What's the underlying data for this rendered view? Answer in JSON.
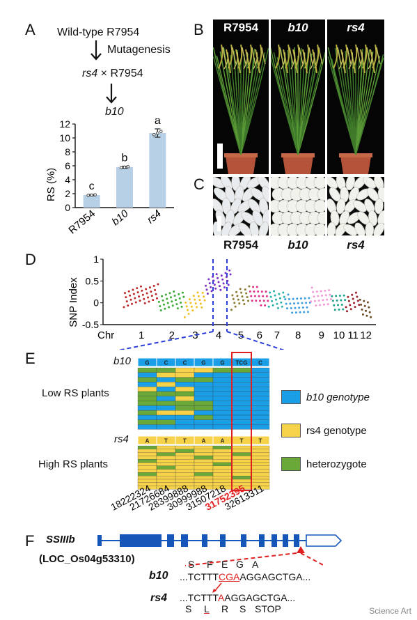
{
  "panels": {
    "A": "A",
    "B": "B",
    "C": "C",
    "D": "D",
    "E": "E",
    "F": "F"
  },
  "panelA": {
    "line1": "Wild-type R7954",
    "step1": "Mutagenesis",
    "cross_left": "rs4",
    "cross_sym": " × ",
    "cross_right": "R7954",
    "result": "b10"
  },
  "chart_data": [
    {
      "type": "bar",
      "categories": [
        "R7954",
        "b10",
        "rs4"
      ],
      "values": [
        1.8,
        5.8,
        10.7
      ],
      "errors": [
        0.1,
        0.15,
        0.6
      ],
      "letters": [
        "c",
        "b",
        "a"
      ],
      "ylabel": "RS (%)",
      "ylim": [
        0,
        12
      ],
      "yticks": [
        0,
        2,
        4,
        6,
        8,
        10,
        12
      ],
      "color": "#b7d0e6"
    },
    {
      "type": "scatter",
      "ylabel": "SNP Index",
      "ylim": [
        -0.5,
        1
      ],
      "yticks": [
        -0.5,
        0,
        0.5,
        1
      ],
      "yticklabels": [
        "-0.5",
        "0",
        "0.5",
        "1"
      ],
      "xlabel_prefix": "Chr",
      "chromosomes": [
        "1",
        "2",
        "3",
        "4",
        "5",
        "6",
        "7",
        "8",
        "9",
        "10",
        "11",
        "12"
      ],
      "colors": [
        "#c0282a",
        "#3aaa35",
        "#f0c020",
        "#7a2fc8",
        "#8a7a30",
        "#e0308a",
        "#27b0a8",
        "#3a9ee0",
        "#f29ad8",
        "#1aa38a",
        "#a01e2a",
        "#6a4a20"
      ]
    }
  ],
  "panelB": {
    "labels": [
      "R7954",
      "b10",
      "rs4"
    ]
  },
  "panelC": {
    "labels": [
      "R7954",
      "b10",
      "rs4"
    ]
  },
  "panelE": {
    "b10_label": "b10",
    "rs4_label": "rs4",
    "b10_bases": [
      "G",
      "C",
      "C",
      "G",
      "G",
      "TCG",
      "C"
    ],
    "rs4_bases": [
      "A",
      "T",
      "T",
      "A",
      "A",
      "T",
      "T"
    ],
    "low_label": "Low RS plants",
    "high_label": "High RS plants",
    "legend": [
      {
        "label": "b10 genotype",
        "color": "#1a9ee6"
      },
      {
        "label": "rs4 genotype",
        "color": "#f5d24a"
      },
      {
        "label": "heterozygote",
        "color": "#6aa83a"
      }
    ],
    "positions": [
      "18222324",
      "21726684",
      "28399888",
      "30999988",
      "31507218",
      "31752395",
      "32613311"
    ],
    "highlight_color": "#e02020"
  },
  "panelF": {
    "gene": "SSIIIb",
    "locus": "(LOC_Os04g53310)",
    "b10_label": "b10",
    "rs4_label": "rs4",
    "b10_pre": "...TCTTT",
    "b10_mut": "CGA",
    "b10_post": "AGGAGCTGA...",
    "rs4_pre": "...TCTTT",
    "rs4_mut": "A",
    "rs4_post": "AGGAGCTGA...",
    "aa_top": [
      "S",
      "F",
      "E",
      "G",
      "A"
    ],
    "aa_bottom": [
      "S",
      "L",
      "R",
      "S",
      "STOP"
    ]
  },
  "watermark": "Science Art"
}
